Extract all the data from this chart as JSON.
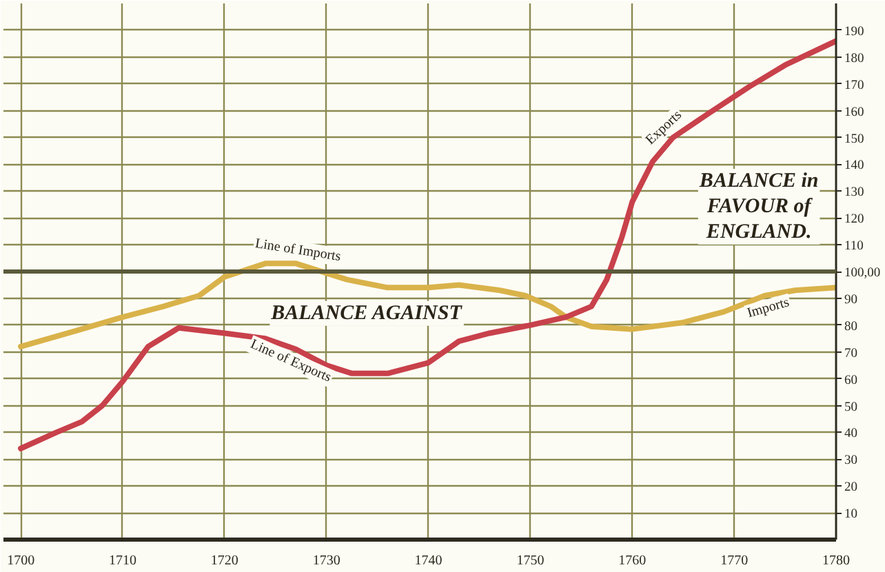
{
  "chart_data": {
    "type": "line",
    "xlim": [
      1698.3,
      1780
    ],
    "ylim": [
      0,
      200
    ],
    "xticks": [
      1700,
      1710,
      1720,
      1730,
      1740,
      1750,
      1760,
      1770,
      1780
    ],
    "yticks": [
      10,
      20,
      30,
      40,
      50,
      60,
      70,
      80,
      90,
      {
        "value": 100,
        "label": "100,00"
      },
      110,
      120,
      130,
      140,
      150,
      160,
      170,
      180,
      190
    ],
    "grid": true,
    "ref_lines": [
      {
        "axis": "y",
        "value": 100,
        "color": "#5b5a3a"
      }
    ],
    "series": [
      {
        "color": "#d9b24a",
        "x": [
          1700,
          1705.5,
          1710,
          1714,
          1717.5,
          1720,
          1724,
          1727,
          1732,
          1736,
          1740,
          1743,
          1747,
          1749.5,
          1752,
          1753.5,
          1756,
          1760,
          1765,
          1769,
          1773,
          1776,
          1780
        ],
        "values": [
          72,
          78,
          83,
          87,
          91,
          98,
          103,
          103,
          97,
          94,
          94,
          95,
          93,
          91,
          87,
          83,
          79.5,
          78.5,
          81,
          85,
          91,
          93,
          94
        ]
      },
      {
        "color": "#c8414b",
        "x": [
          1700,
          1703.5,
          1706,
          1708,
          1710,
          1712.5,
          1715.5,
          1720,
          1724,
          1727,
          1730,
          1732.5,
          1736,
          1740,
          1743,
          1746,
          1750,
          1753.5,
          1756,
          1757.5,
          1759,
          1760,
          1762,
          1764,
          1767.5,
          1771.5,
          1775,
          1780
        ],
        "values": [
          34,
          40,
          44,
          50,
          59,
          72,
          79,
          77,
          75,
          71,
          65,
          62,
          62,
          66,
          74,
          77,
          80,
          83,
          87,
          97,
          113,
          126,
          141,
          150,
          159,
          169,
          177,
          186
        ]
      }
    ],
    "annotations": [
      {
        "text": "Line of Imports",
        "x": 1727,
        "y": 103
      },
      {
        "text": "Line of Exports",
        "x": 1727,
        "y": 71
      },
      "BALANCE AGAINST",
      "BALANCE in\nFAVOUR of\nENGLAND.",
      {
        "text": "Exports",
        "x": 1764,
        "y": 150
      },
      {
        "text": "Imports",
        "x": 1773,
        "y": 91
      }
    ]
  }
}
